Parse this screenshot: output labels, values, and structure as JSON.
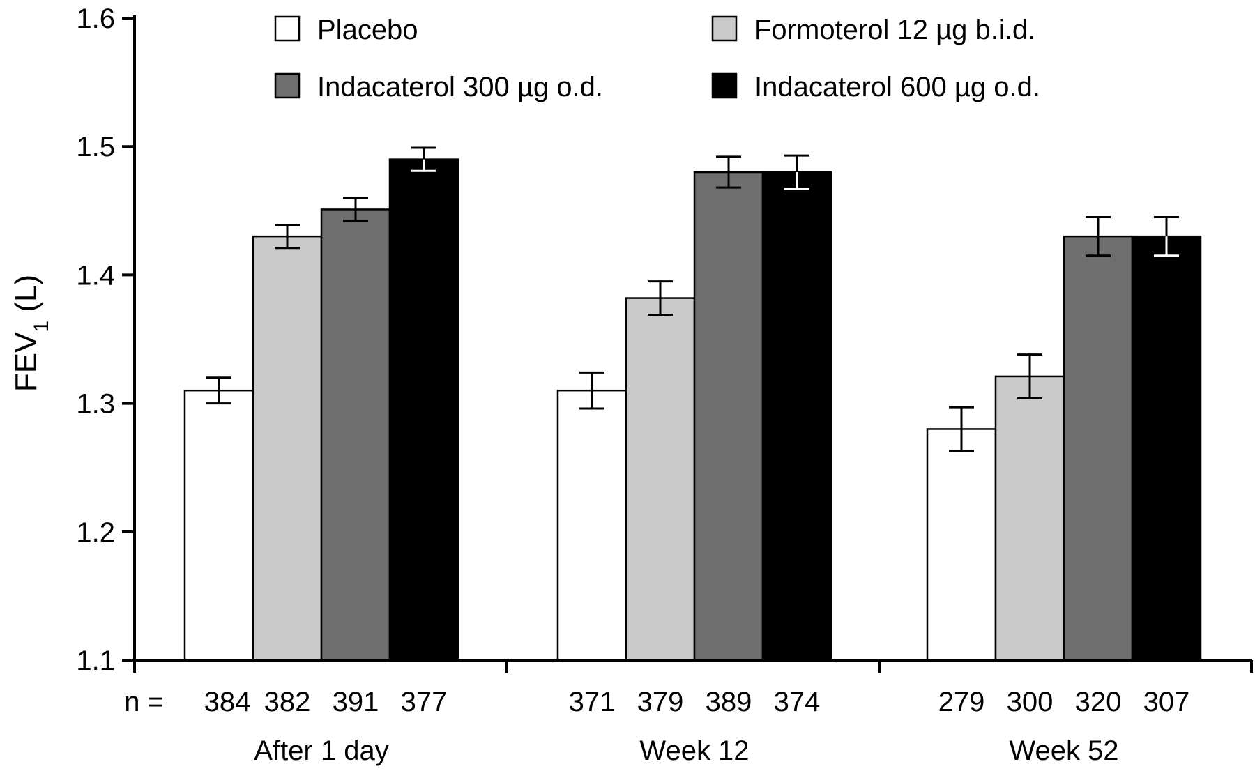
{
  "chart_data": {
    "type": "bar",
    "title": "",
    "xlabel": "",
    "ylabel_main": "FEV",
    "ylabel_sub": "1",
    "ylabel_unit": " (L)",
    "ylim": [
      1.1,
      1.6
    ],
    "yticks": [
      "1.1",
      "1.2",
      "1.3",
      "1.4",
      "1.5",
      "1.6"
    ],
    "n_prefix": "n =",
    "categories": [
      "After 1 day",
      "Week 12",
      "Week 52"
    ],
    "legend_placement": "top",
    "series": [
      {
        "name": "Placebo",
        "color": "#ffffff",
        "values": [
          1.31,
          1.31,
          1.28
        ],
        "errors": [
          0.01,
          0.014,
          0.017
        ],
        "n": [
          "384",
          "371",
          "279"
        ]
      },
      {
        "name": "Formoterol 12 µg b.i.d.",
        "color": "#c9c9c9",
        "values": [
          1.43,
          1.382,
          1.321
        ],
        "errors": [
          0.009,
          0.013,
          0.017
        ],
        "n": [
          "382",
          "379",
          "300"
        ]
      },
      {
        "name": "Indacaterol 300 µg o.d.",
        "color": "#6e6e6e",
        "values": [
          1.451,
          1.48,
          1.43
        ],
        "errors": [
          0.009,
          0.012,
          0.015
        ],
        "n": [
          "391",
          "389",
          "320"
        ]
      },
      {
        "name": "Indacaterol 600 µg o.d.",
        "color": "#000000",
        "values": [
          1.49,
          1.48,
          1.43
        ],
        "errors": [
          0.009,
          0.013,
          0.015
        ],
        "n": [
          "377",
          "374",
          "307"
        ]
      }
    ]
  }
}
